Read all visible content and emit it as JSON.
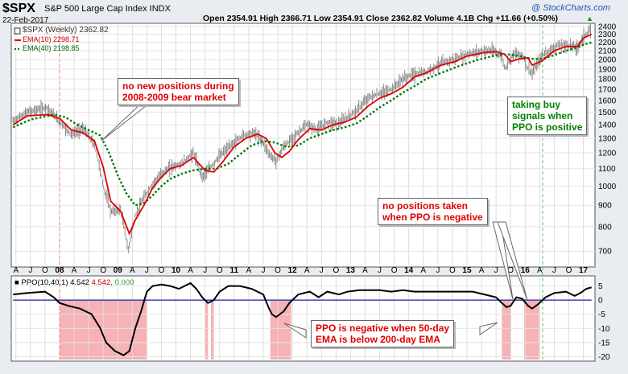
{
  "header": {
    "symbol": "$SPX",
    "name": "S&P 500 Large Cap Index INDX",
    "date": "22-Feb-2017",
    "ohlc": "Open 2354.91  High 2366.71  Low 2354.91  Close 2362.82  Volume 4.1B  Chg +11.66 (+0.50%)",
    "chg_arrow": "▲",
    "credit": "@ StockCharts.com"
  },
  "legend": {
    "price": "$SPX (Weekly) 2362.82",
    "ema10": "EMA(10) 2298.71",
    "ema40": "EMA(40) 2198.85",
    "ppo_label": "PPO(10,40,1)",
    "ppo_val1": "4.542",
    "ppo_val2": "4.542,",
    "ppo_val3": "0.000"
  },
  "annotations": {
    "bear_market": "no new positions during\n2008-2009 bear market",
    "buy_signals": "taking buy\nsignals when\nPPO is positive",
    "no_positions": "no positions taken\nwhen PPO is negative",
    "ppo_negative": "PPO is negative when 50-day\nEMA is below 200-day EMA"
  },
  "colors": {
    "price": "#808080",
    "ema10": "#dd0000",
    "ema40": "#007700",
    "ppo": "#000000",
    "zero_line": "#1e1eaa",
    "shade": "#f4a5a8",
    "annot_red": "#e00000",
    "annot_green": "#008000",
    "credit": "#2255bb"
  },
  "chart_data": [
    {
      "type": "line",
      "title": "$SPX S&P 500 Large Cap Index INDX (Weekly)",
      "yscale": "log",
      "ylim": [
        650,
        2420
      ],
      "yticks": [
        700,
        800,
        900,
        1000,
        1100,
        1200,
        1300,
        1400,
        1500,
        1600,
        1700,
        1800,
        1900,
        2000,
        2100,
        2200,
        2300,
        2400
      ],
      "xlim": [
        2007.17,
        2017.2
      ],
      "x_tick_labels": [
        "A",
        "J",
        "O",
        "08",
        "A",
        "J",
        "O",
        "09",
        "A",
        "J",
        "O",
        "10",
        "A",
        "J",
        "O",
        "11",
        "A",
        "J",
        "O",
        "12",
        "A",
        "J",
        "O",
        "13",
        "A",
        "J",
        "O",
        "14",
        "A",
        "J",
        "O",
        "15",
        "A",
        "J",
        "O",
        "16",
        "A",
        "J",
        "O",
        "17"
      ],
      "x_tick_values": [
        2007.25,
        2007.5,
        2007.75,
        2008.0,
        2008.25,
        2008.5,
        2008.75,
        2009.0,
        2009.25,
        2009.5,
        2009.75,
        2010.0,
        2010.25,
        2010.5,
        2010.75,
        2011.0,
        2011.25,
        2011.5,
        2011.75,
        2012.0,
        2012.25,
        2012.5,
        2012.75,
        2013.0,
        2013.25,
        2013.5,
        2013.75,
        2014.0,
        2014.25,
        2014.5,
        2014.75,
        2015.0,
        2015.25,
        2015.5,
        2015.75,
        2016.0,
        2016.25,
        2016.5,
        2016.75,
        2017.0
      ],
      "series": [
        {
          "name": "$SPX (Weekly)",
          "x": [
            2007.2,
            2007.45,
            2007.78,
            2008.0,
            2008.2,
            2008.4,
            2008.6,
            2008.75,
            2008.88,
            2009.05,
            2009.18,
            2009.3,
            2009.45,
            2009.6,
            2009.75,
            2009.9,
            2010.1,
            2010.3,
            2010.45,
            2010.6,
            2010.75,
            2011.0,
            2011.15,
            2011.35,
            2011.5,
            2011.62,
            2011.72,
            2011.85,
            2012.0,
            2012.25,
            2012.42,
            2012.6,
            2012.8,
            2012.95,
            2013.1,
            2013.3,
            2013.5,
            2013.7,
            2013.9,
            2014.05,
            2014.3,
            2014.55,
            2014.8,
            2015.0,
            2015.3,
            2015.45,
            2015.6,
            2015.65,
            2015.8,
            2015.95,
            2016.05,
            2016.12,
            2016.3,
            2016.5,
            2016.6,
            2016.8,
            2016.9,
            2017.0,
            2017.14
          ],
          "values": [
            1430,
            1500,
            1540,
            1420,
            1330,
            1370,
            1260,
            1000,
            870,
            880,
            700,
            850,
            940,
            1010,
            1070,
            1110,
            1130,
            1200,
            1050,
            1110,
            1180,
            1270,
            1320,
            1340,
            1270,
            1180,
            1150,
            1240,
            1300,
            1400,
            1360,
            1420,
            1410,
            1460,
            1510,
            1620,
            1660,
            1700,
            1800,
            1840,
            1870,
            1960,
            2010,
            2060,
            2100,
            2100,
            2040,
            1900,
            2070,
            2050,
            1900,
            1850,
            2050,
            2140,
            2170,
            2160,
            2130,
            2270,
            2363
          ]
        },
        {
          "name": "EMA(10)",
          "x": [
            2007.2,
            2007.45,
            2007.8,
            2008.0,
            2008.2,
            2008.4,
            2008.6,
            2008.75,
            2008.88,
            2009.05,
            2009.2,
            2009.3,
            2009.45,
            2009.6,
            2009.75,
            2009.9,
            2010.1,
            2010.3,
            2010.5,
            2010.65,
            2010.8,
            2011.0,
            2011.2,
            2011.4,
            2011.55,
            2011.7,
            2011.82,
            2011.95,
            2012.1,
            2012.3,
            2012.5,
            2012.7,
            2012.9,
            2013.1,
            2013.3,
            2013.5,
            2013.7,
            2013.9,
            2014.1,
            2014.3,
            2014.55,
            2014.8,
            2015.0,
            2015.3,
            2015.5,
            2015.65,
            2015.75,
            2015.9,
            2016.05,
            2016.12,
            2016.3,
            2016.5,
            2016.7,
            2016.9,
            2017.0,
            2017.14
          ],
          "values": [
            1400,
            1470,
            1480,
            1450,
            1360,
            1340,
            1280,
            1110,
            920,
            870,
            770,
            830,
            900,
            990,
            1050,
            1100,
            1120,
            1170,
            1090,
            1080,
            1140,
            1240,
            1300,
            1330,
            1300,
            1200,
            1170,
            1210,
            1290,
            1370,
            1360,
            1400,
            1420,
            1460,
            1550,
            1620,
            1660,
            1720,
            1820,
            1860,
            1940,
            1980,
            2040,
            2080,
            2090,
            2060,
            1980,
            2010,
            2020,
            1940,
            1990,
            2100,
            2150,
            2150,
            2250,
            2299
          ]
        },
        {
          "name": "EMA(40)",
          "x": [
            2007.2,
            2007.5,
            2007.9,
            2008.1,
            2008.3,
            2008.5,
            2008.7,
            2008.85,
            2009.0,
            2009.15,
            2009.3,
            2009.45,
            2009.6,
            2009.75,
            2009.9,
            2010.1,
            2010.3,
            2010.5,
            2010.7,
            2010.9,
            2011.1,
            2011.3,
            2011.5,
            2011.7,
            2011.9,
            2012.1,
            2012.3,
            2012.5,
            2012.7,
            2012.9,
            2013.1,
            2013.3,
            2013.5,
            2013.7,
            2013.9,
            2014.1,
            2014.3,
            2014.6,
            2014.9,
            2015.2,
            2015.5,
            2015.7,
            2015.9,
            2016.1,
            2016.3,
            2016.5,
            2016.7,
            2016.9,
            2017.0,
            2017.14
          ],
          "values": [
            1380,
            1440,
            1480,
            1460,
            1400,
            1360,
            1320,
            1200,
            1060,
            960,
            900,
            910,
            950,
            1000,
            1040,
            1070,
            1090,
            1100,
            1100,
            1130,
            1190,
            1250,
            1280,
            1270,
            1240,
            1250,
            1300,
            1330,
            1360,
            1380,
            1410,
            1470,
            1540,
            1600,
            1670,
            1730,
            1800,
            1870,
            1940,
            2000,
            2050,
            2060,
            2040,
            2010,
            2010,
            2050,
            2100,
            2140,
            2170,
            2199
          ]
        }
      ]
    },
    {
      "type": "line",
      "title": "PPO(10,40,1)",
      "ylim": [
        -21,
        8
      ],
      "yticks": [
        5,
        0,
        -5,
        -10,
        -15,
        -20
      ],
      "series": [
        {
          "name": "PPO(10,40,1)",
          "x": [
            2007.2,
            2007.45,
            2007.75,
            2007.9,
            2008.0,
            2008.15,
            2008.35,
            2008.55,
            2008.7,
            2008.8,
            2008.95,
            2009.1,
            2009.2,
            2009.3,
            2009.4,
            2009.5,
            2009.6,
            2009.75,
            2009.9,
            2010.05,
            2010.25,
            2010.35,
            2010.45,
            2010.55,
            2010.65,
            2010.75,
            2010.9,
            2011.1,
            2011.3,
            2011.5,
            2011.6,
            2011.65,
            2011.72,
            2011.85,
            2011.95,
            2012.1,
            2012.3,
            2012.45,
            2012.6,
            2012.8,
            2012.95,
            2013.15,
            2013.35,
            2013.5,
            2013.7,
            2013.9,
            2014.1,
            2014.3,
            2014.5,
            2014.7,
            2014.9,
            2015.1,
            2015.3,
            2015.5,
            2015.6,
            2015.68,
            2015.75,
            2015.85,
            2015.95,
            2016.05,
            2016.12,
            2016.22,
            2016.35,
            2016.5,
            2016.7,
            2016.85,
            2016.95,
            2017.05,
            2017.14
          ],
          "values": [
            2,
            2.5,
            3,
            1,
            -1,
            -2,
            -3,
            -5,
            -10,
            -15,
            -18,
            -19.5,
            -18,
            -10,
            -4,
            3,
            5,
            5.5,
            5,
            4,
            6,
            4,
            1,
            -1,
            0,
            3,
            5,
            5,
            4,
            2,
            -3,
            -5,
            -6,
            -4,
            -1,
            2,
            3,
            1,
            3,
            2,
            3,
            3.5,
            3.5,
            3.5,
            3,
            3.5,
            3,
            3,
            3,
            3,
            3,
            3,
            2,
            1,
            -1,
            -2.5,
            -2,
            1,
            0.5,
            -2,
            -3,
            -1.5,
            1,
            2.5,
            3,
            1.5,
            2.5,
            4,
            4.5
          ]
        },
        {
          "name": "Signal",
          "x": [
            2007.2,
            2017.14
          ],
          "values": [
            0,
            0
          ]
        }
      ],
      "shaded_negative_ranges": [
        [
          2008.0,
          2009.5
        ],
        [
          2010.5,
          2010.55
        ],
        [
          2010.6,
          2010.65
        ],
        [
          2011.62,
          2011.98
        ],
        [
          2015.6,
          2015.76
        ],
        [
          2015.98,
          2016.24
        ]
      ]
    }
  ]
}
